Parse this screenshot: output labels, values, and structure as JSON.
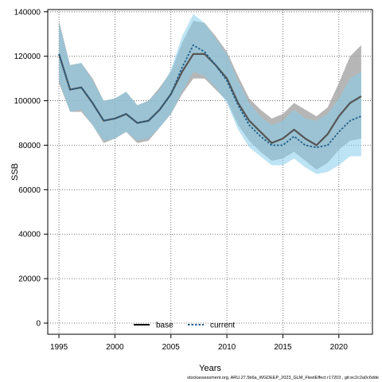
{
  "chart_data": {
    "type": "line",
    "xlabel": "Years",
    "ylabel": "SSB",
    "xlim": [
      1994,
      2023
    ],
    "ylim": [
      -5000,
      141000
    ],
    "xticks": [
      "1995",
      "2000",
      "2005",
      "2010",
      "2015",
      "2020"
    ],
    "yticks": [
      "0",
      "20000",
      "40000",
      "60000",
      "80000",
      "100000",
      "120000",
      "140000"
    ],
    "grid": true,
    "legend_position": "bottom-center",
    "x": [
      1995,
      1996,
      1997,
      1998,
      1999,
      2000,
      2001,
      2002,
      2003,
      2004,
      2005,
      2006,
      2007,
      2008,
      2009,
      2010,
      2011,
      2012,
      2013,
      2014,
      2015,
      2016,
      2017,
      2018,
      2019,
      2020,
      2021,
      2022
    ],
    "series": [
      {
        "name": "base",
        "color": "#000000",
        "band_color": "#9e9e9e",
        "values": [
          121000,
          105000,
          106000,
          99000,
          91000,
          92000,
          94000,
          90000,
          91000,
          96000,
          103000,
          113000,
          121000,
          121000,
          116000,
          110000,
          99000,
          91000,
          86000,
          81000,
          83000,
          87000,
          83000,
          80000,
          85000,
          93000,
          99000,
          102000
        ],
        "lower": [
          108000,
          95000,
          95000,
          89000,
          81000,
          83000,
          86000,
          81000,
          82000,
          88000,
          94000,
          103000,
          110000,
          110000,
          105000,
          100000,
          89000,
          82000,
          77000,
          73000,
          74000,
          77000,
          73000,
          69000,
          72000,
          78000,
          82000,
          83000
        ],
        "upper": [
          136000,
          116000,
          117000,
          110000,
          100000,
          101000,
          104000,
          98000,
          100000,
          106000,
          113000,
          126000,
          136000,
          135000,
          129000,
          122000,
          111000,
          101000,
          96000,
          92000,
          94000,
          99000,
          96000,
          93000,
          97000,
          108000,
          120000,
          125000
        ]
      },
      {
        "name": "current",
        "color": "#1f5f8b",
        "band_color": "#87ceeb",
        "values": [
          121000,
          105000,
          106000,
          99000,
          91000,
          92000,
          94000,
          90000,
          91000,
          96000,
          103000,
          115000,
          125000,
          122000,
          116000,
          109000,
          98000,
          89000,
          84000,
          80000,
          80000,
          84000,
          80000,
          79000,
          80000,
          86000,
          91000,
          93000
        ],
        "lower": [
          109000,
          95000,
          96000,
          89000,
          82000,
          83000,
          86000,
          82000,
          83000,
          88000,
          94000,
          104000,
          113000,
          111000,
          106000,
          99000,
          87000,
          79000,
          75000,
          71000,
          71000,
          74000,
          70000,
          67000,
          68000,
          71000,
          75000,
          75000
        ],
        "upper": [
          135000,
          116000,
          117000,
          109000,
          100000,
          101000,
          104000,
          98000,
          100000,
          105000,
          114000,
          129000,
          139000,
          135000,
          128000,
          121000,
          109000,
          99000,
          93000,
          89000,
          91000,
          96000,
          92000,
          91000,
          94000,
          101000,
          110000,
          113000
        ]
      }
    ]
  },
  "footnote": "stockassessment.org, ARU.27.5b6a_WGDEEP_2023_GLM_FleetEffect r17203 , git:ec2c2a0c6dde"
}
